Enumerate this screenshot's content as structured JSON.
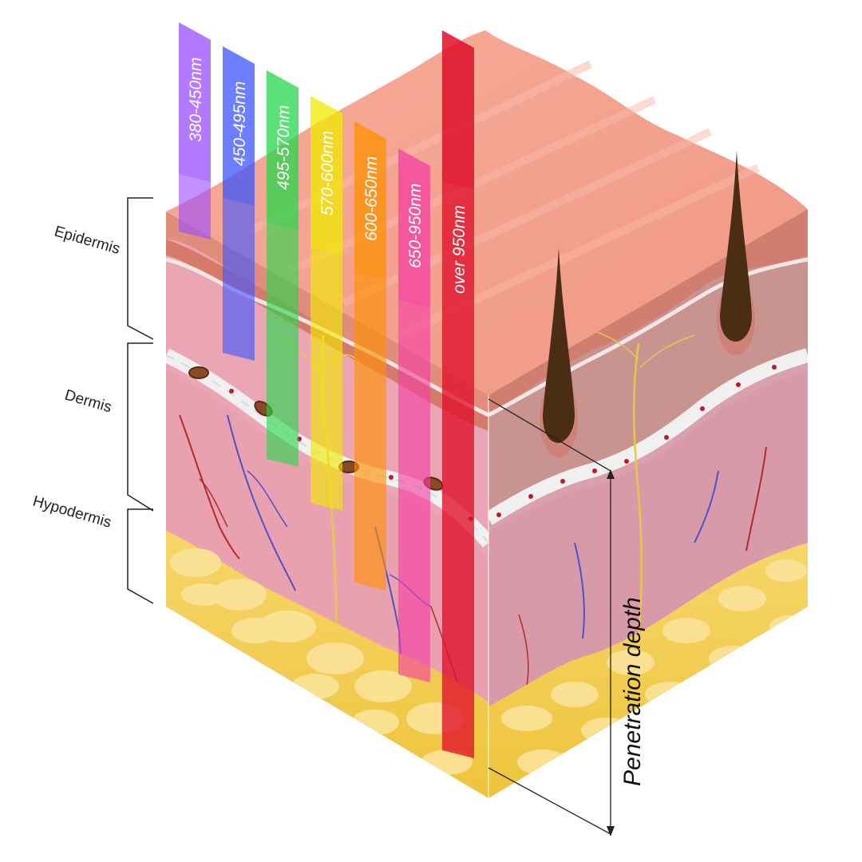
{
  "layers": {
    "epidermis": "Epidermis",
    "dermis": "Dermis",
    "hypodermis": "Hypodermis"
  },
  "bands": [
    {
      "label": "380-450nm",
      "color": "#9b4dff"
    },
    {
      "label": "450-495nm",
      "color": "#3d55ff"
    },
    {
      "label": "495-570nm",
      "color": "#25d84a"
    },
    {
      "label": "570-600nm",
      "color": "#f2ea00"
    },
    {
      "label": "600-650nm",
      "color": "#ff9000"
    },
    {
      "label": "650-950nm",
      "color": "#f43fa2"
    },
    {
      "label": "over 950nm",
      "color": "#e0102a"
    }
  ],
  "penetration_label": "Penetration depth",
  "colors": {
    "skin_top": "#f6a692",
    "epidermis": "#dd8676",
    "dermis": "#e9a4b2",
    "hypodermis": "#f3cf4a",
    "hair": "#4a2d12"
  }
}
